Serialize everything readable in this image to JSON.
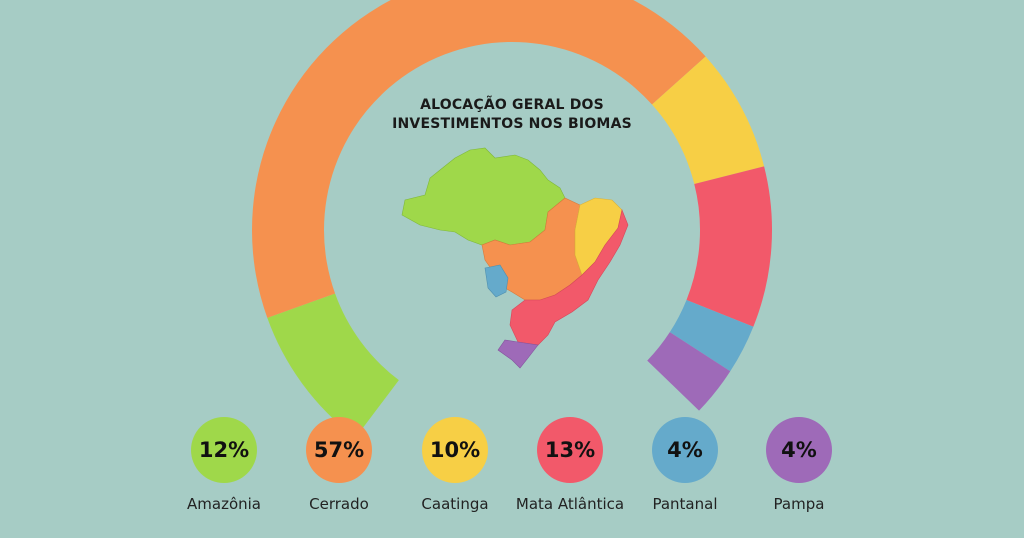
{
  "chart_data": {
    "type": "pie",
    "title": "ALOCAÇÃO GERAL DOS INVESTIMENTOS NOS BIOMAS",
    "categories": [
      "Amazônia",
      "Cerrado",
      "Caatinga",
      "Mata Atlântica",
      "Pantanal",
      "Pampa"
    ],
    "values": [
      12,
      57,
      10,
      13,
      4,
      4
    ],
    "labels": [
      "12%",
      "57%",
      "10%",
      "13%",
      "4%",
      "4%"
    ],
    "colors": [
      "#9fd84a",
      "#f5914f",
      "#f7cf45",
      "#f2596a",
      "#65aacb",
      "#9e6ab8"
    ],
    "style": "open-donut"
  }
}
